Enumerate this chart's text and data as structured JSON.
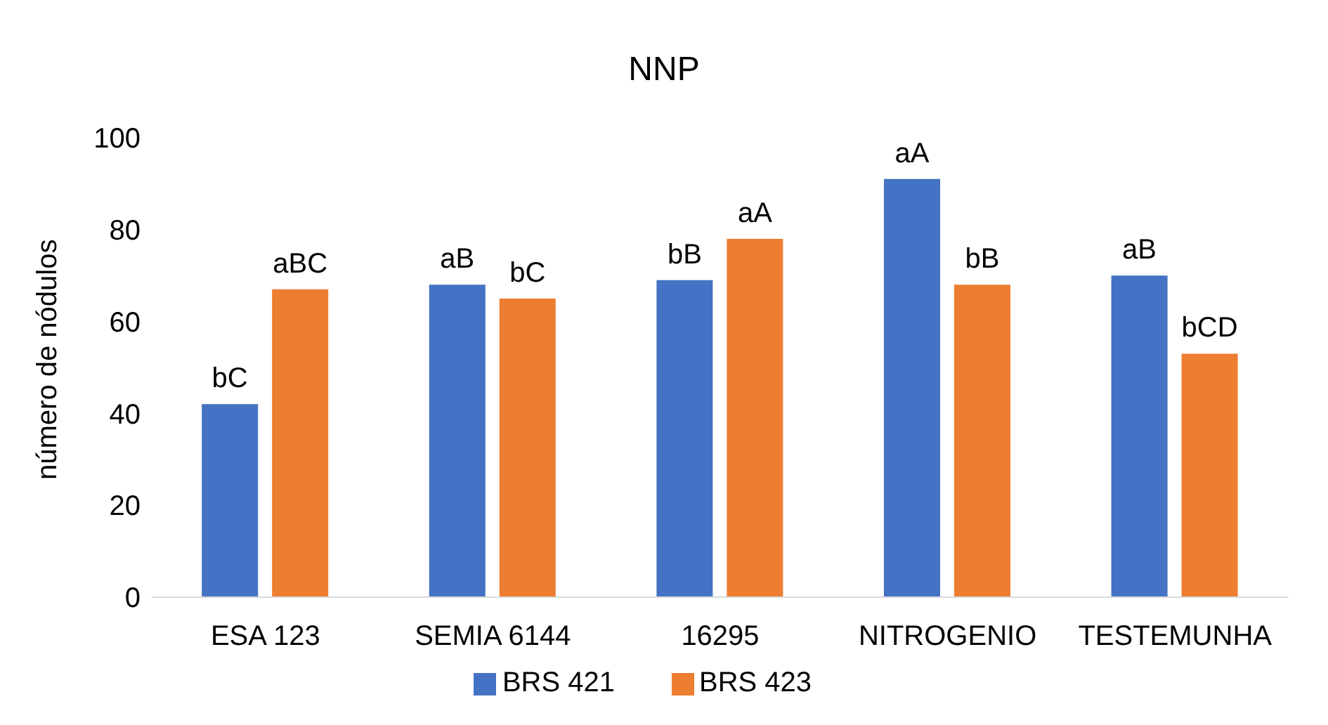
{
  "chart_data": {
    "type": "bar",
    "title": "NNP",
    "ylabel": "número de nódulos",
    "categories": [
      "ESA 123",
      "SEMIA 6144",
      "16295",
      "NITROGENIO",
      "TESTEMUNHA"
    ],
    "series": [
      {
        "name": "BRS 421",
        "color": "#4472c4",
        "values": [
          42,
          68,
          69,
          91,
          70
        ],
        "value_labels": [
          "bC",
          "aB",
          "bB",
          "aA",
          "aB"
        ]
      },
      {
        "name": "BRS 423",
        "color": "#ed7d31",
        "values": [
          67,
          65,
          78,
          68,
          53
        ],
        "value_labels": [
          "aBC",
          "bC",
          "aA",
          "bB",
          "bCD"
        ]
      }
    ],
    "ylim": [
      0,
      100
    ],
    "yticks": [
      0,
      20,
      40,
      60,
      80,
      100
    ],
    "grid": false,
    "legend": "bottom"
  }
}
